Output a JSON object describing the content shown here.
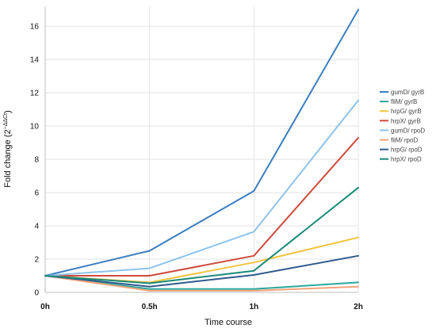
{
  "chart_data": {
    "type": "line",
    "title": "",
    "xlabel": "Time course",
    "ylabel": "Fold change (2",
    "ylabel_superscript": "−ΔΔCt",
    "ylabel_suffix": ")",
    "x": [
      "0h",
      "0.5h",
      "1h",
      "2h"
    ],
    "yticks": [
      0,
      2,
      4,
      6,
      8,
      10,
      12,
      14,
      16
    ],
    "ylim": [
      0,
      17.2
    ],
    "grid": true,
    "legend_position": "right",
    "series": [
      {
        "name": "gumD/ gyrB",
        "color": "#3d7ebf",
        "values": [
          1.0,
          2.5,
          6.1,
          17.0
        ]
      },
      {
        "name": "fliM/ gyrB",
        "color": "#2aa79b",
        "values": [
          1.0,
          0.2,
          0.2,
          0.6
        ]
      },
      {
        "name": "hrpG/ gyrB",
        "color": "#f2c43d",
        "values": [
          1.0,
          0.6,
          1.8,
          3.3
        ]
      },
      {
        "name": "hrpX/ gyrB",
        "color": "#cf4a3c",
        "values": [
          1.0,
          1.0,
          2.2,
          9.3
        ]
      },
      {
        "name": "gumD/ rpoD",
        "color": "#8ec3ec",
        "values": [
          1.0,
          1.45,
          3.65,
          11.55
        ]
      },
      {
        "name": "fliM/ rpoD",
        "color": "#f2a27a",
        "values": [
          1.0,
          0.1,
          0.1,
          0.35
        ]
      },
      {
        "name": "hrpG/ rpoD",
        "color": "#2f5b8c",
        "values": [
          1.0,
          0.35,
          1.05,
          2.2
        ]
      },
      {
        "name": "hrpX/ rpoD",
        "color": "#1a8a78",
        "values": [
          1.0,
          0.55,
          1.3,
          6.3
        ]
      }
    ]
  }
}
